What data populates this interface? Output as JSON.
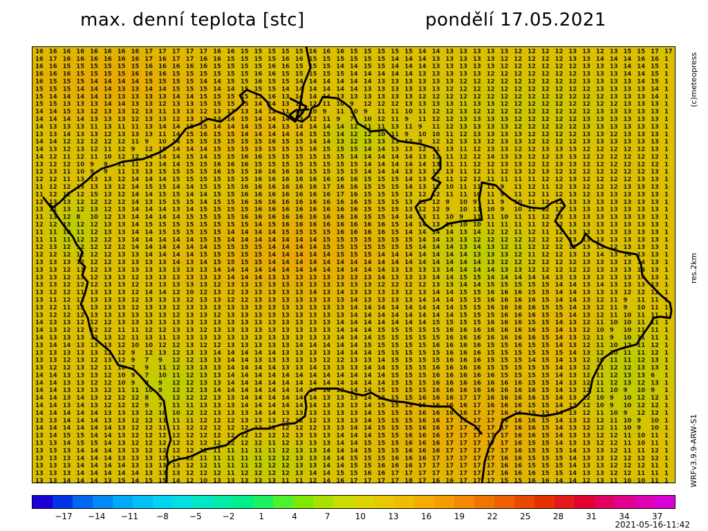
{
  "header": {
    "title": "max. denní teplota [stc]",
    "date": "pondělí 17.05.2021"
  },
  "side_labels": {
    "copyright": "(c)meteopress",
    "resolution": "res.2km",
    "model": "WRFv3.9.9-ARW-S1"
  },
  "timestamp": "2021-05-16-11:42",
  "colorbar": {
    "tick_labels": [
      "−17",
      "−14",
      "−11",
      "−8",
      "−5",
      "−2",
      "1",
      "4",
      "7",
      "10",
      "13",
      "16",
      "19",
      "22",
      "25",
      "28",
      "31",
      "34",
      "37"
    ],
    "colors": [
      "#1a00d6",
      "#0033e6",
      "#0066f0",
      "#0088f4",
      "#00a8f8",
      "#00c0f8",
      "#00d4f0",
      "#00e0e0",
      "#00e8c4",
      "#00eca8",
      "#00ee88",
      "#1cf060",
      "#50f030",
      "#80e800",
      "#a8e000",
      "#c8dc00",
      "#dcd400",
      "#e8c800",
      "#f0bc00",
      "#f4ac00",
      "#f49c00",
      "#f48800",
      "#f07400",
      "#ec6000",
      "#e84800",
      "#e63000",
      "#e41818",
      "#e40030",
      "#e40060",
      "#e4008c",
      "#e000b4",
      "#d800d8"
    ]
  },
  "map_data": {
    "field_colors": {
      "cool": "#b8d000",
      "mid": "#d8c400",
      "warm": "#e8b800",
      "hot": "#eaa800"
    },
    "rows": [
      "16 16 16 16 16 16 16 16 17 17 17 17 17 16 16 15 15 15 15 15 16 16 16 15 15 15 15 15 14 14 13 13 13 13 13 12 12 12 12 13 13 12 13 15 15 17 17 1",
      "16 17 16 16 16 16 16 16 17 16 17 17 16 16 15 15 15 15 16 16 15 15 15 15 15 15 14 14 14 13 13 13 13 13 12 12 12 12 12 13 13 14 14 14 16 16 1",
      "16 16 15 15 15 15 15 15 16 16 16 16 16 15 15 15 15 16 16 15 15 15 14 14 15 15 14 14 14 13 13 13 13 13 12 12 12 12 12 12 13 13 13 14 14 15 1",
      "16 16 16 15 15 15 15 16 16 16 15 15 15 15 15 15 16 16 15 15 15 15 15 14 14 14 14 14 13 13 13 13 13 12 12 12 12 12 12 12 13 13 13 14 14 15 1",
      "16 15 15 15 14 14 14 14 15 15 15 15 14 14 15 15 16 15 15 14 14 14 14 14 14 13 13 13 13 13 13 12 12 12 12 12 12 12 12 12 13 13 13 13 14 15 1",
      "15 15 15 14 14 14 13 13 14 14 15 15 15 14 14 15 15 15 14 14 14 14 14 14 13 13 13 13 13 13 12 12 12 12 12 12 12 12 12 12 12 13 13 13 13 14 1",
      "15 14 14 14 14 13 13 13 13 13 14 14 15 15 15 15 15 16 13 14 14 14 13 13 13 13 13 13 12 12 12 12 12 12 12 12 12 12 12 12 12 12 13 13 13 14 1",
      "15 15 13 13 13 14 14 13 13 12 13 13 15 15 15 15 14 14 13 13 12 11 10 9 12 12 12 13 13 13 13 11 13 13 12 12 12 12 12 12 12 12 12 13 13 13 1",
      "14 14 15 13 12 13 13 12 13 11 13 13 12 13 13 13 14 12 11 11 10 9 11 10 9 11 11 10 11 12 12 13 12 12 12 12 12 12 12 12 12 13 13 13 13 13 1",
      "14 14 14 14 13 13 13 12 13 13 12 13 12 13 14 15 14 14 14 13 12 11 9 7 10 12 11 9 11 12 12 13 13 13 13 12 12 12 12 12 13 13 13 13 13 13 1",
      "14 13 13 13 11 13 11 11 13 14 14 15 15 14 14 14 15 14 13 14 14 14 14 12 11 11 13 11 9 11 12 13 13 13 13 12 12 12 12 12 13 13 13 13 13 13 1",
      "13 13 14 13 13 12 13 13 13 11 14 15 16 15 15 14 14 14 14 14 15 15 14 12 12 10 11 9 10 10 11 12 13 13 13 13 12 12 12 12 13 13 12 13 13 13 1",
      "14 14 12 12 12 12 12 11 9 10 14 15 15 15 15 15 15 16 15 15 14 14 13 12 13 13 11 12 9 12 12 13 13 12 13 13 12 12 12 12 13 13 13 13 13 13 1",
      "14 13 12 13 12 11 12 9 12 15 14 14 14 15 15 15 15 15 15 15 16 15 15 15 14 14 13 13 12 11 13 11 12 13 13 12 12 13 13 13 12 12 12 12 12 13 1",
      "14 12 11 12 11 10 12 12 14 14 14 15 14 15 15 16 16 15 15 15 15 15 15 14 14 14 14 14 13 12 11 12 12 14 13 13 12 12 13 13 12 12 12 12 12 12 1",
      "13 12 12 10 9 9 11 11 13 14 14 15 15 16 16 16 15 15 15 15 15 15 15 15 14 14 14 14 14 13 11 11 12 12 13 13 12 12 13 13 12 12 12 12 12 12 1",
      "12 13 11 10 9 9 11 13 13 15 15 15 15 16 15 15 16 16 16 16 15 15 15 15 14 14 14 13 13 12 13 11 12 11 12 13 12 13 12 12 12 12 12 12 12 13 1",
      "12 12 11 13 13 13 12 14 14 14 15 15 15 15 15 15 16 16 16 16 16 16 16 16 15 15 15 14 13 12 11 12 12 11 11 11 11 12 12 13 12 12 12 12 13 13 1",
      "11 12 12 13 13 13 12 14 15 15 14 14 15 15 15 16 16 16 16 16 16 17 16 16 15 15 15 14 13 12 10 11 11 11 9 11 12 11 12 13 12 12 12 13 13 13 1",
      "11 12 12 12 15 13 12 14 14 15 15 14 14 15 15 16 16 16 16 16 16 16 17 16 15 15 15 13 12 12 11 11 10 11 9 11 12 11 12 13 12 13 13 13 13 13 1",
      "12 13 13 12 12 12 12 14 13 15 15 15 14 15 15 16 16 16 16 16 16 16 16 16 15 15 15 13 13 12 9 10 9 11 9 10 11 12 12 13 13 13 13 13 13 13 1",
      "13 11 13 12 13 12 13 14 14 14 13 14 15 15 15 15 16 16 16 16 16 16 16 16 15 15 15 13 12 12 9 10 11 10 9 10 11 12 13 13 13 13 13 13 13 13 1",
      "11 13 12 8 10 12 13 14 14 14 14 15 15 15 15 16 16 16 16 16 16 16 16 16 15 15 14 14 13 11 10 9 11 11 10 11 11 12 13 13 13 13 13 13 13 13 1",
      "12 12 13 12 12 13 13 14 15 15 15 15 15 15 15 15 14 15 16 16 16 16 16 16 16 16 15 14 14 13 11 10 10 11 11 11 11 12 12 13 13 13 13 13 13 13 1",
      "11 11 10 11 12 13 13 14 14 15 15 15 15 15 14 14 14 14 15 15 15 15 16 16 16 16 15 14 14 14 14 13 14 12 12 11 12 11 12 13 13 13 13 13 13 13 1",
      "11 11 11 12 12 12 13 14 14 14 14 14 15 15 14 14 14 14 14 14 14 15 15 15 15 15 15 15 14 14 13 13 12 12 12 12 12 12 12 13 13 13 13 13 13 13 1",
      "12 13 12 12 12 12 12 14 14 14 14 14 14 15 15 15 15 14 14 14 14 15 15 15 15 15 15 15 14 14 14 13 14 13 12 11 12 12 12 12 13 13 12 13 13 13 1",
      "12 12 12 12 12 12 13 13 14 14 14 14 15 15 15 15 15 14 14 14 14 14 15 15 15 14 14 14 14 14 14 14 13 13 13 12 11 12 12 13 13 14 13 14 13 13 1",
      "13 13 13 12 12 12 13 13 13 13 14 13 14 15 15 15 15 14 14 14 14 14 14 14 14 14 14 14 14 14 14 14 14 13 12 12 12 12 12 12 13 13 13 13 14 13 1",
      "13 13 12 13 12 13 13 13 13 13 13 13 13 14 14 14 14 14 14 14 14 14 14 14 14 14 13 13 13 13 14 14 14 14 13 13 12 12 12 12 12 13 13 13 14 13 1",
      "13 13 12 13 12 13 13 12 13 13 13 13 13 13 14 14 14 13 13 13 13 13 13 13 13 14 13 13 13 14 14 15 15 14 14 14 14 14 13 13 13 13 13 13 14 13 1",
      "13 13 12 12 12 13 13 12 13 13 13 13 13 12 13 13 13 13 13 13 13 13 13 13 13 12 12 12 12 13 13 14 14 15 15 15 15 15 14 14 13 14 13 13 13 13 1",
      "13 12 12 11 13 13 13 12 14 14 12 10 12 13 12 13 13 13 13 13 14 13 14 13 13 13 13 12 13 14 14 15 15 16 16 16 15 15 14 14 13 13 13 12 12 12 1",
      "13 11 12 13 13 13 13 12 13 13 13 12 13 13 12 12 13 13 13 13 13 13 13 14 13 13 13 13 14 14 14 15 15 16 16 16 16 15 14 14 13 12 11 9 11 11 1",
      "13 12 11 12 13 13 13 12 13 13 12 13 13 13 13 13 13 13 13 13 13 13 13 14 14 14 14 14 14 14 14 15 15 16 16 16 16 15 15 14 13 12 11 9 10 11 1",
      "13 12 12 12 13 13 13 13 13 13 12 13 13 12 13 13 13 13 13 13 13 13 13 14 14 14 14 14 14 14 14 15 15 15 16 16 16 15 15 14 13 12 11 10 11 11 1",
      "14 13 13 12 12 12 13 13 13 13 13 13 13 13 13 13 13 13 13 13 13 13 14 14 14 14 14 14 14 15 15 15 15 16 16 16 15 15 14 13 12 11 10 10 11 11 1",
      "14 13 12 12 12 12 11 11 12 12 13 13 12 13 13 13 13 13 13 13 13 13 14 14 14 15 15 15 15 15 16 16 16 16 16 16 16 15 14 13 12 10 9 10 11 11 1",
      "14 13 13 13 13 13 12 11 13 11 13 13 13 13 13 13 13 13 13 13 13 13 14 14 14 15 15 15 15 15 16 16 16 16 16 16 16 15 14 13 12 11 9 10 11 11 1",
      "13 14 14 13 13 13 12 10 10 12 12 13 12 12 13 13 13 13 13 14 14 14 14 14 15 15 15 15 15 16 16 16 16 15 15 16 15 15 14 13 12 11 10 12 11 12 1",
      "13 13 13 13 13 12 12 9 12 13 12 13 13 14 14 14 14 14 13 13 13 13 14 14 14 15 15 15 15 15 16 16 16 15 15 15 15 15 15 14 13 12 10 11 11 12 1",
      "13 13 12 13 12 13 12 9 7 9 12 12 13 13 14 14 13 13 13 13 13 12 12 13 13 14 15 15 15 15 16 16 16 15 15 15 14 15 14 13 12 10 11 11 12 13 1",
      "13 12 12 13 12 11 10 7 9 11 12 13 13 13 14 14 14 14 13 13 14 13 13 13 14 14 15 15 15 16 16 16 16 15 15 15 15 15 14 13 12 11 12 12 13 13 1",
      "14 14 13 13 13 12 10 9 7 10 11 12 13 13 14 14 14 14 14 14 14 14 14 14 14 14 15 15 15 16 16 16 16 16 15 15 15 15 14 13 12 11 12 13 13 6 1",
      "14 14 13 13 12 12 10 9 8 9 12 12 13 13 14 14 14 14 14 14 14 14 14 14 14 14 15 15 15 16 16 16 16 16 16 16 15 15 14 13 12 11 12 13 12 13 1",
      "14 14 13 13 13 12 11 11 10 9 12 12 13 14 14 14 14 14 14 14 14 14 13 14 14 15 15 15 15 16 16 16 16 16 16 16 16 15 14 13 12 11 10 9 10 9 1",
      "14 14 13 14 13 12 12 12 8 9 12 12 12 13 13 14 14 14 14 14 14 13 13 13 14 15 15 15 16 16 16 17 17 16 16 16 16 15 14 13 12 10 9 10 12 12 1",
      "14 14 13 14 13 12 12 12 9 7 11 11 13 13 13 14 14 14 14 14 14 13 13 13 14 15 15 15 16 16 16 16 17 16 16 16 15 15 14 13 12 10 9 10 12 12 1",
      "14 14 14 14 14 13 13 13 12 10 10 12 12 13 13 13 14 14 13 13 13 13 13 13 14 15 15 15 16 16 16 16 17 17 16 16 15 15 14 13 12 11 10 9 12 12 1",
      "13 13 14 14 14 13 13 12 12 11 11 11 12 12 12 13 13 13 12 12 12 13 13 13 14 15 15 15 16 16 17 17 17 17 16 16 16 15 14 13 12 12 11 10 9 10 1",
      "14 14 14 14 14 14 13 12 12 11 11 12 12 12 12 12 12 12 12 12 12 13 13 14 14 15 15 15 16 16 17 17 17 17 17 16 16 15 14 13 12 12 11 10 9 10 1",
      "13 14 15 15 14 14 13 12 12 12 12 12 12 12 12 12 12 12 12 13 13 13 14 14 14 15 15 16 16 16 17 17 17 17 17 16 16 15 14 13 13 12 12 11 10 11 1",
      "13 13 14 15 15 14 13 12 12 12 12 12 12 12 12 12 12 11 12 13 13 13 14 14 15 15 15 16 16 16 17 17 17 17 17 16 15 15 14 13 13 12 12 11 10 11 1",
      "13 13 13 14 14 14 13 13 12 12 12 12 12 11 11 11 11 11 12 13 13 14 14 14 15 15 15 16 16 16 17 17 17 17 17 16 15 15 15 14 13 13 12 11 11 12 1",
      "13 13 13 14 14 14 13 13 13 12 12 12 11 11 11 11 11 12 12 13 13 14 14 15 15 15 16 16 16 17 17 17 17 17 16 16 15 15 15 14 13 13 12 12 12 12 1",
      "13 13 13 14 14 14 14 13 13 13 13 12 12 11 11 11 12 12 12 13 13 14 14 15 15 16 16 16 17 17 17 17 17 17 16 16 15 15 15 14 13 13 12 12 12 11 1",
      "13 13 13 14 14 14 14 14 13 13 13 12 12 12 11 12 12 12 12 13 14 14 15 15 16 16 17 17 17 17 17 17 17 17 16 16 16 15 15 14 13 13 12 12 11 11 1",
      "13 13 14 14 14 13 15 14 15 15 14 12 10 13 13 13 13 13 11 11 12 14 16 17 17 17 17 18 17 16 16 17 17 17 15 15 16 16 14 14 12 13 11 10 10 11 1"
    ]
  }
}
